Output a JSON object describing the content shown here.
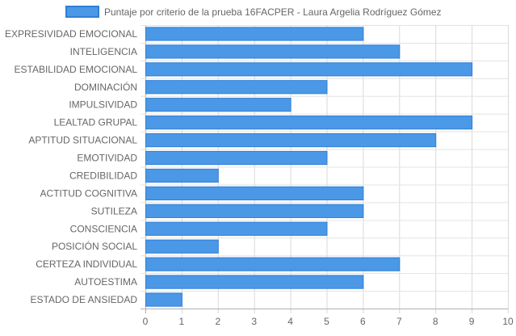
{
  "chart_data": {
    "type": "bar",
    "orientation": "horizontal",
    "categories": [
      "EXPRESIVIDAD EMOCIONAL",
      "INTELIGENCIA",
      "ESTABILIDAD EMOCIONAL",
      "DOMINACIÓN",
      "IMPULSIVIDAD",
      "LEALTAD GRUPAL",
      "APTITUD SITUACIONAL",
      "EMOTIVIDAD",
      "CREDIBILIDAD",
      "ACTITUD COGNITIVA",
      "SUTILEZA",
      "CONSCIENCIA",
      "POSICIÓN SOCIAL",
      "CERTEZA INDIVIDUAL",
      "AUTOESTIMA",
      "ESTADO DE ANSIEDAD"
    ],
    "series": [
      {
        "name": "Puntaje por criterio de la prueba 16FACPER - Laura Argelia Rodríguez Gómez",
        "values": [
          6,
          7,
          9,
          5,
          4,
          9,
          8,
          5,
          2,
          6,
          6,
          5,
          2,
          7,
          6,
          1
        ],
        "color": "#4a98e6",
        "border_color": "#2f7fd8"
      }
    ],
    "xlim": [
      0,
      10
    ],
    "x_ticks": [
      "0",
      "1",
      "2",
      "3",
      "4",
      "5",
      "6",
      "7",
      "8",
      "9",
      "10"
    ],
    "grid": true,
    "legend_position": "top"
  }
}
